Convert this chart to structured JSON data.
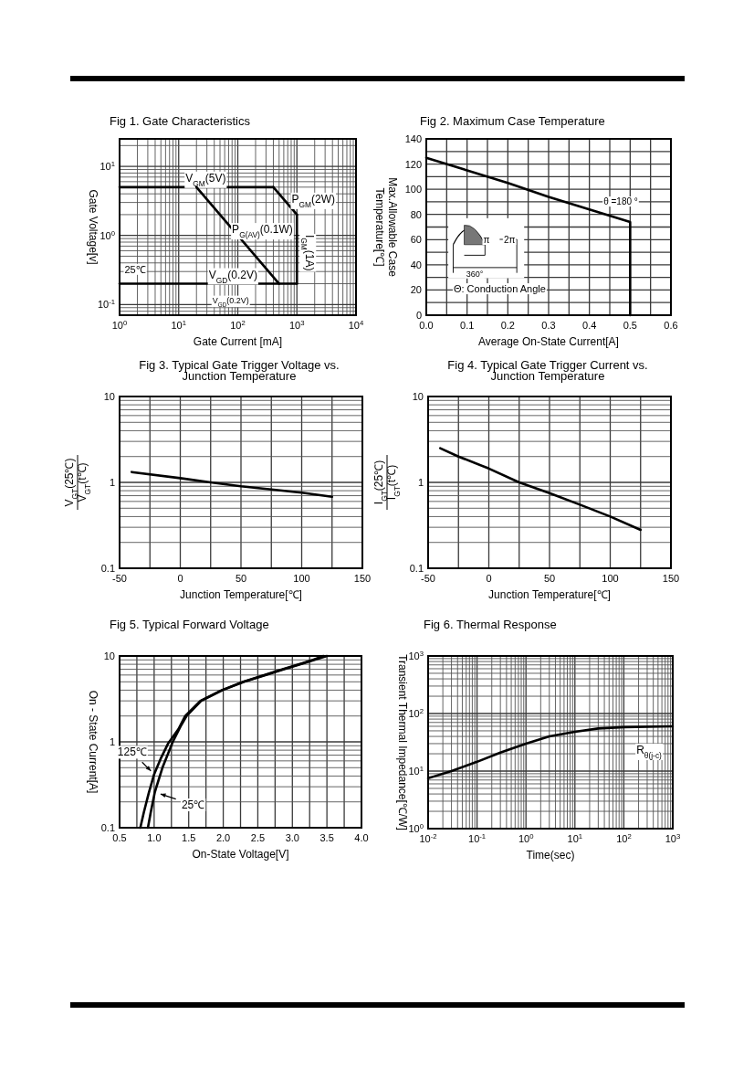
{
  "chart_data": [
    {
      "type": "line",
      "title": "Fig 1.  Gate  Characteristics",
      "xlabel": "Gate  Current  [mA]",
      "ylabel": "Gate  Voltage[v]",
      "log": "xy",
      "grid": true,
      "xlim": [
        1,
        10000
      ],
      "ylim": [
        0.07,
        25
      ],
      "xticks": [
        {
          "value": 1,
          "label": "10$^{0}$"
        },
        {
          "value": 10,
          "label": "10$^{1}$"
        },
        {
          "value": 100,
          "label": "10$^{2}$"
        },
        {
          "value": 1000,
          "label": "10$^{3}$"
        },
        {
          "value": 10000,
          "label": "10$^{4}$"
        }
      ],
      "yticks": [
        {
          "value": 0.1,
          "label": "10$^{-1}$"
        },
        {
          "value": 1,
          "label": "10$^{0}$"
        },
        {
          "value": 10,
          "label": "10$^{1}$"
        }
      ],
      "series": [
        {
          "name": "V$_{GM}$(5V)",
          "color": "#000000",
          "x": [
            1,
            400
          ],
          "values": [
            5,
            5
          ]
        },
        {
          "name": "P$_{GM}$(2W)",
          "color": "#000000",
          "x": [
            400,
            1000
          ],
          "values": [
            5,
            2
          ]
        },
        {
          "name": "I$_{GM}$(1A)",
          "color": "#000000",
          "x": [
            1000,
            1000
          ],
          "values": [
            2,
            0.2
          ]
        },
        {
          "name": "V$_{GD}$(0.2V)",
          "color": "#000000",
          "x": [
            1,
            1000
          ],
          "values": [
            0.2,
            0.2
          ]
        },
        {
          "name": "P$_{G(AV)}$(0.1W)",
          "color": "#000000",
          "x": [
            20,
            500
          ],
          "values": [
            5,
            0.2
          ]
        }
      ],
      "annotations": [
        "25℃",
        "V$_{GD}$(0.2V)"
      ]
    },
    {
      "type": "line",
      "title": "Fig 2.  Maximum  Case  Temperature",
      "xlabel": "Average  On-State  Current[A]",
      "ylabel": "Max.Allowable  Case\nTemperature[℃]",
      "grid": true,
      "xlim": [
        0,
        0.6
      ],
      "ylim": [
        0,
        140
      ],
      "xticks": [
        {
          "value": 0,
          "label": "0.0"
        },
        {
          "value": 0.05,
          "label": null
        },
        0.1,
        {
          "value": 0.15,
          "label": null
        },
        0.2,
        {
          "value": 0.25,
          "label": null
        },
        0.3,
        {
          "value": 0.35,
          "label": null
        },
        0.4,
        {
          "value": 0.45,
          "label": null
        },
        0.5,
        {
          "value": 0.55,
          "label": null
        },
        0.6
      ],
      "yticks": [
        0,
        {
          "value": 10,
          "label": null
        },
        20,
        {
          "value": 30,
          "label": null
        },
        40,
        {
          "value": 50,
          "label": null
        },
        60,
        {
          "value": 70,
          "label": null
        },
        80,
        {
          "value": 90,
          "label": null
        },
        100,
        {
          "value": 110,
          "label": null
        },
        120,
        {
          "value": 130,
          "label": null
        },
        140
      ],
      "series": [
        {
          "color": "#000000",
          "x": [
            0,
            0.1,
            0.2,
            0.3,
            0.4,
            0.5,
            0.5
          ],
          "values": [
            125,
            115,
            105,
            94,
            84,
            74,
            0
          ]
        }
      ],
      "annotations": [
        {
          "text": "θ =180 °",
          "x": 0.45,
          "y": 79
        },
        "Θ:  Conduction  Angle",
        "π",
        "2π",
        "360°"
      ]
    },
    {
      "type": "line",
      "title": "Fig 3.  Typical  Gate  Trigger  Voltage  vs.\nJunction  Temperature",
      "xlabel": "Junction  Temperature[℃]",
      "ylabel": "V$_{GT}$(t℃)\nV$_{GT}$(25℃)",
      "log": "y",
      "grid": true,
      "xlim": [
        -50,
        150
      ],
      "ylim": [
        0.1,
        10
      ],
      "xticks": [
        -50,
        {
          "value": -25,
          "label": null
        },
        0,
        {
          "value": 25,
          "label": null
        },
        50,
        {
          "value": 75,
          "label": null
        },
        100,
        {
          "value": 125,
          "label": null
        },
        150
      ],
      "yticks": [
        0.1,
        1,
        10
      ],
      "series": [
        {
          "color": "#000000",
          "x": [
            -40,
            0,
            25,
            50,
            100,
            125
          ],
          "values": [
            1.32,
            1.12,
            1.0,
            0.9,
            0.76,
            0.68
          ]
        }
      ]
    },
    {
      "type": "line",
      "title": "Fig 4.  Typical  Gate  Trigger  Current  vs.\nJunction  Temperature",
      "xlabel": "Junction  Temperature[℃]",
      "ylabel": "I$_{GT}$(t℃)\nI$_{GT}$(25℃)",
      "log": "y",
      "grid": true,
      "xlim": [
        -50,
        150
      ],
      "ylim": [
        0.1,
        10
      ],
      "xticks": [
        -50,
        {
          "value": -25,
          "label": null
        },
        0,
        {
          "value": 25,
          "label": null
        },
        50,
        {
          "value": 75,
          "label": null
        },
        100,
        {
          "value": 125,
          "label": null
        },
        150
      ],
      "yticks": [
        0.1,
        1,
        10
      ],
      "series": [
        {
          "color": "#000000",
          "x": [
            -40,
            -25,
            0,
            25,
            50,
            75,
            100,
            125
          ],
          "values": [
            2.5,
            2.0,
            1.45,
            1.0,
            0.75,
            0.55,
            0.4,
            0.28
          ]
        }
      ]
    },
    {
      "type": "line",
      "title": "Fig 5.  Typical  Forward  Voltage",
      "xlabel": "On-State  Voltage[V]",
      "ylabel": "On - State  Current[A]",
      "log": "y",
      "grid": true,
      "xlim": [
        0.5,
        4.0
      ],
      "ylim": [
        0.1,
        10
      ],
      "xticks": [
        0.5,
        {
          "value": 0.75,
          "label": null
        },
        {
          "value": 1,
          "label": "1.0"
        },
        {
          "value": 1.25,
          "label": null
        },
        1.5,
        {
          "value": 1.75,
          "label": null
        },
        {
          "value": 2,
          "label": "2.0"
        },
        {
          "value": 2.25,
          "label": null
        },
        2.5,
        {
          "value": 2.75,
          "label": null
        },
        {
          "value": 3,
          "label": "3.0"
        },
        {
          "value": 3.25,
          "label": null
        },
        3.5,
        {
          "value": 3.75,
          "label": null
        },
        {
          "value": 4,
          "label": "4.0"
        }
      ],
      "yticks": [
        0.1,
        1,
        10
      ],
      "series": [
        {
          "name": "125℃",
          "color": "#000000",
          "x": [
            0.8,
            0.85,
            0.92,
            1.0,
            1.1,
            1.2,
            1.35,
            1.45,
            1.67,
            1.98,
            2.29,
            2.6,
            2.86,
            3.1,
            3.3,
            3.45
          ],
          "values": [
            0.1,
            0.15,
            0.25,
            0.42,
            0.65,
            0.95,
            1.4,
            2,
            3,
            4,
            5,
            6,
            7,
            8,
            9,
            10
          ]
        },
        {
          "name": "25℃",
          "color": "#000000",
          "x": [
            0.91,
            0.95,
            1.01,
            1.12,
            1.27,
            1.38,
            1.47,
            1.68,
            1.99,
            2.3,
            2.62,
            2.88,
            3.12,
            3.32,
            3.5
          ],
          "values": [
            0.1,
            0.15,
            0.26,
            0.5,
            1.0,
            1.5,
            2,
            3,
            4,
            5,
            6,
            7,
            8,
            9,
            10
          ]
        }
      ]
    },
    {
      "type": "line",
      "title": "Fig 6.  Thermal  Response",
      "xlabel": "Time(sec)",
      "ylabel": "Transient  Thermal  Impedance[℃/W]",
      "log": "xy",
      "grid": true,
      "xlim": [
        0.01,
        1000
      ],
      "ylim": [
        1,
        1000
      ],
      "xticks": [
        {
          "value": 0.01,
          "label": "10$^{-2}$"
        },
        {
          "value": 0.1,
          "label": "10$^{-1}$"
        },
        {
          "value": 1,
          "label": "10$^{0}$"
        },
        {
          "value": 10,
          "label": "10$^{1}$"
        },
        {
          "value": 100,
          "label": "10$^{2}$"
        },
        {
          "value": 1000,
          "label": "10$^{3}$"
        }
      ],
      "yticks": [
        {
          "value": 1,
          "label": "10$^{0}$"
        },
        {
          "value": 10,
          "label": "10$^{1}$"
        },
        {
          "value": 100,
          "label": "10$^{2}$"
        },
        {
          "value": 1000,
          "label": "10$^{3}$"
        }
      ],
      "series": [
        {
          "name": "R$_{θ(j-c)}$",
          "color": "#000000",
          "x": [
            0.01,
            0.03,
            0.1,
            0.3,
            1,
            3,
            10,
            30,
            100,
            1000
          ],
          "values": [
            7.5,
            10,
            14.5,
            21,
            30,
            40,
            48,
            55,
            58,
            60
          ]
        }
      ]
    }
  ]
}
